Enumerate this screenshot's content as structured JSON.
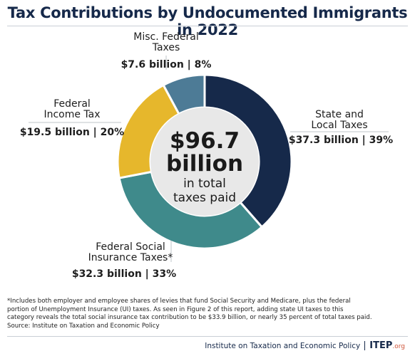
{
  "chart_data": {
    "type": "pie",
    "title": "Tax Contributions by Undocumented Immigrants in 2022",
    "center_value": "$96.7",
    "center_unit": "billion",
    "center_caption_line1": "in total",
    "center_caption_line2": "taxes paid",
    "categories": [
      "State and Local Taxes",
      "Federal Social Insurance Taxes*",
      "Federal Income Tax",
      "Misc. Federal Taxes"
    ],
    "values": [
      37.3,
      32.3,
      19.5,
      7.6
    ],
    "percents": [
      39,
      33,
      20,
      8
    ],
    "colors": [
      "#16294a",
      "#3f8a8b",
      "#e6b72c",
      "#4d7b96"
    ],
    "labels": [
      {
        "line1": "State and",
        "line2": "Local Taxes",
        "value_text": "$37.3 billion | 39%"
      },
      {
        "line1": "Federal Social",
        "line2": "Insurance Taxes*",
        "value_text": "$32.3 billion | 33%"
      },
      {
        "line1": "Federal",
        "line2": "Income Tax",
        "value_text": "$19.5 billion | 20%"
      },
      {
        "line1": "Misc. Federal",
        "line2": "Taxes",
        "value_text": "$7.6 billion | 8%"
      }
    ]
  },
  "footnote": {
    "line1": "*Includes both employer and employee shares of levies that fund Social Security and Medicare, plus the federal",
    "line2": "portion of Unemployment Insurance (UI) taxes. As seen in Figure 2 of this report, adding state UI taxes to this",
    "line3": "category reveals the total social insurance tax contribution to be $33.9 billion, or nearly 35 percent of total taxes paid.",
    "source": "Source: Institute on Taxation and Economic Policy"
  },
  "footer": {
    "org": "Institute on Taxation and Economic Policy",
    "logo": "ITEP",
    "logo_sub": ".org"
  }
}
